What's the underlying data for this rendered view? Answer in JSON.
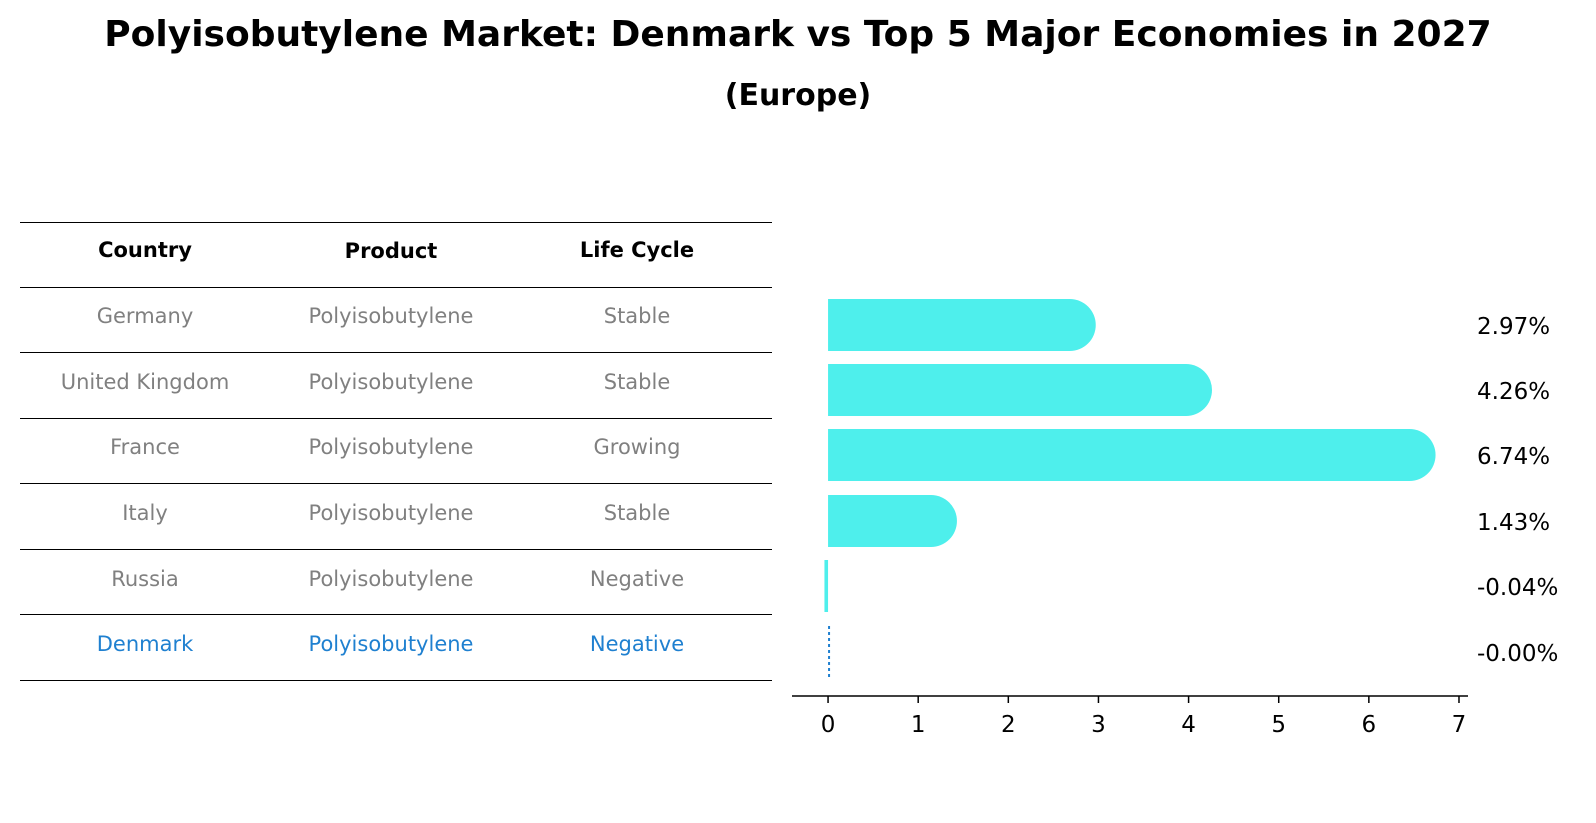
{
  "title": "Polyisobutylene Market: Denmark vs Top 5 Major Economies in 2027",
  "subtitle": "(Europe)",
  "table": {
    "headers": [
      "Country",
      "Product",
      "Life Cycle"
    ],
    "rows": [
      {
        "country": "Germany",
        "product": "Polyisobutylene",
        "life_cycle": "Stable"
      },
      {
        "country": "United Kingdom",
        "product": "Polyisobutylene",
        "life_cycle": "Stable"
      },
      {
        "country": "France",
        "product": "Polyisobutylene",
        "life_cycle": "Growing"
      },
      {
        "country": "Italy",
        "product": "Polyisobutylene",
        "life_cycle": "Stable"
      },
      {
        "country": "Russia",
        "product": "Polyisobutylene",
        "life_cycle": "Negative"
      },
      {
        "country": "Denmark",
        "product": "Polyisobutylene",
        "life_cycle": "Negative"
      }
    ],
    "highlight_row": 5,
    "colors": {
      "text": "#808080",
      "highlight": "#1f80d0"
    }
  },
  "chart_data": {
    "type": "bar",
    "orientation": "horizontal",
    "categories": [
      "Germany",
      "United Kingdom",
      "France",
      "Italy",
      "Russia",
      "Denmark"
    ],
    "values": [
      2.97,
      4.26,
      6.74,
      1.43,
      -0.04,
      -0.0
    ],
    "value_labels": [
      "2.97%",
      "4.26%",
      "6.74%",
      "1.43%",
      "-0.04%",
      "-0.00%"
    ],
    "xlim": [
      -0.4,
      7.1
    ],
    "xticks": [
      0,
      1,
      2,
      3,
      4,
      5,
      6,
      7
    ],
    "bar_color": "#4eefec",
    "highlight_bar_style": "dotted",
    "highlight_color": "#1f80d0",
    "grid": false
  }
}
